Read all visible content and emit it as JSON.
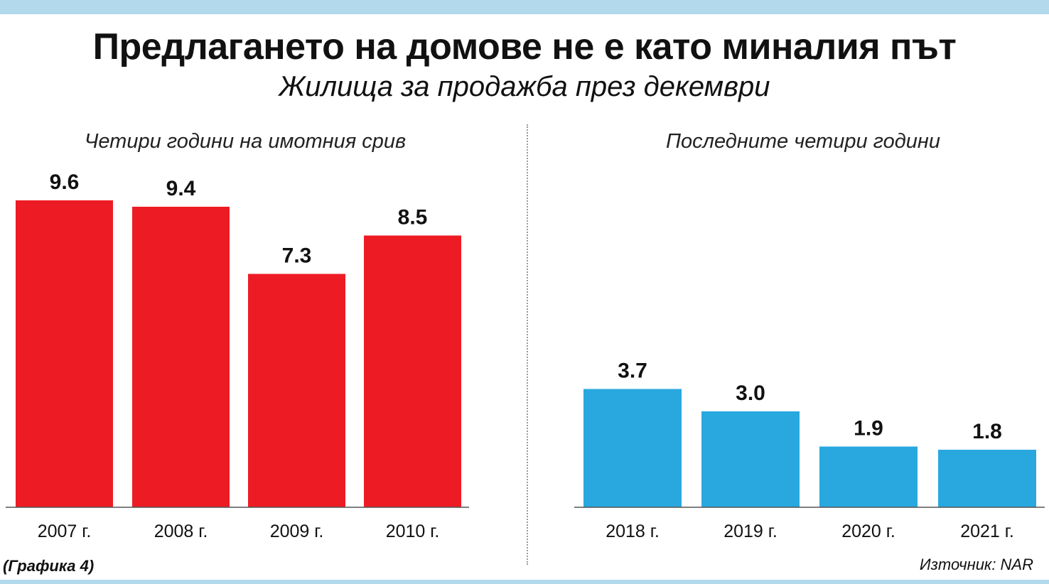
{
  "title": "Предлагането на домове не е като миналия път",
  "subtitle": "Жилища за продажба през декември",
  "footnote_left": "(Графика 4)",
  "footnote_right": "Източник: NAR",
  "chart_data": [
    {
      "type": "bar",
      "title": "Четири години на имотния срив",
      "categories": [
        "2007 г.",
        "2008 г.",
        "2009 г.",
        "2010 г."
      ],
      "values": [
        9.6,
        9.4,
        7.3,
        8.5
      ],
      "value_labels": [
        "9.6",
        "9.4",
        "7.3",
        "8.5"
      ],
      "color": "#ed1c24",
      "ylim": [
        0,
        9.6
      ],
      "grid": false
    },
    {
      "type": "bar",
      "title": "Последните четири години",
      "categories": [
        "2018 г.",
        "2019 г.",
        "2020 г.",
        "2021 г."
      ],
      "values": [
        3.7,
        3.0,
        1.9,
        1.8
      ],
      "value_labels": [
        "3.7",
        "3.0",
        "1.9",
        "1.8"
      ],
      "color": "#29a8e0",
      "ylim": [
        0,
        9.6
      ],
      "grid": false
    }
  ]
}
